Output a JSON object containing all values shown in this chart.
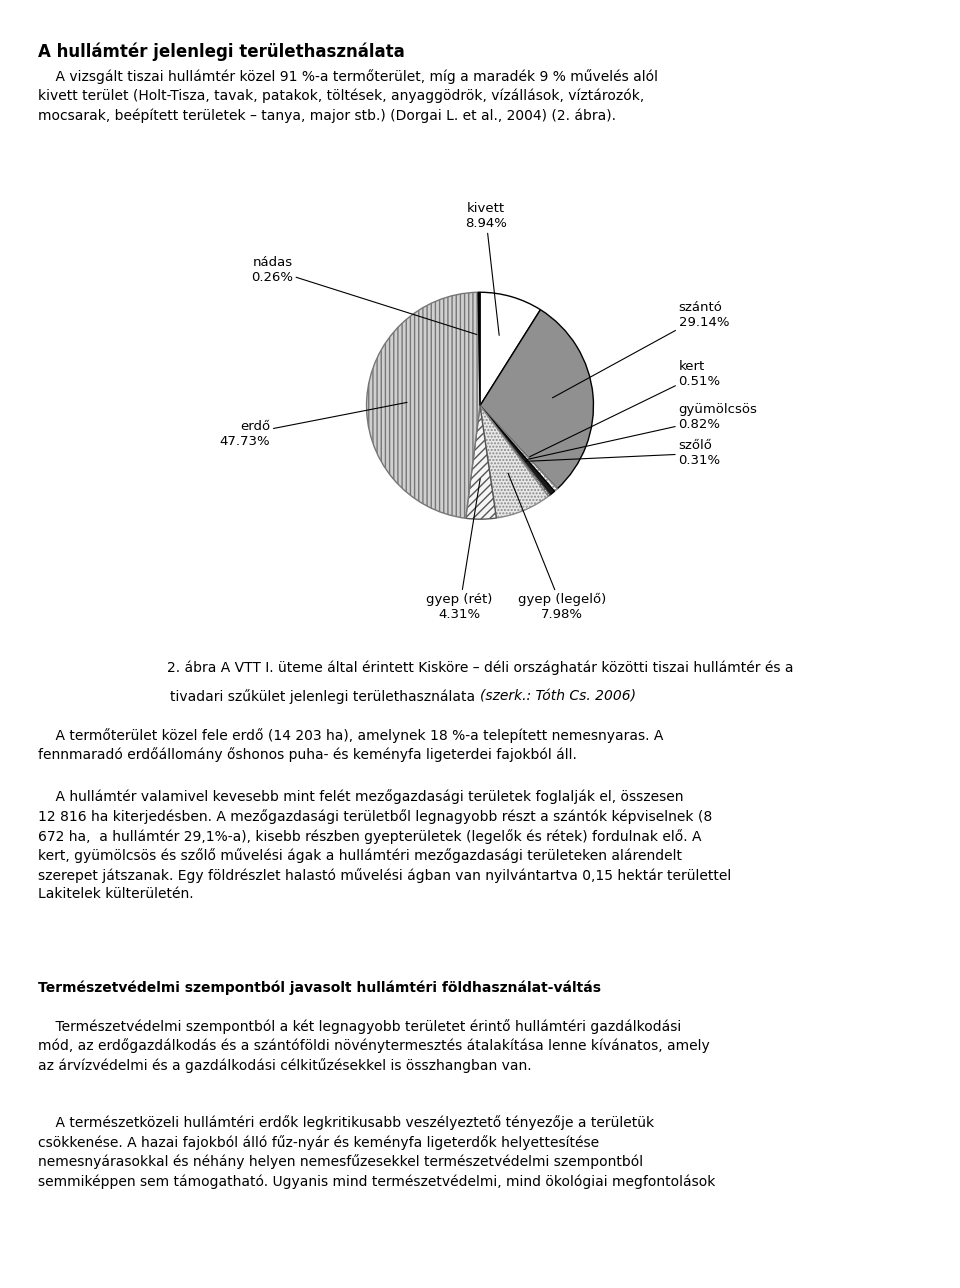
{
  "slice_order": [
    {
      "name": "kivett",
      "pct": "8.94%",
      "value": 8.94,
      "color": "#ffffff",
      "hatch": null,
      "ec": "#000000"
    },
    {
      "name": "szántó",
      "pct": "29.14%",
      "value": 29.14,
      "color": "#909090",
      "hatch": null,
      "ec": "#000000"
    },
    {
      "name": "kert",
      "pct": "0.51%",
      "value": 0.51,
      "color": "#ffffff",
      "hatch": ".....",
      "ec": "#888888"
    },
    {
      "name": "gyümölcsös",
      "pct": "0.82%",
      "value": 0.82,
      "color": "#1a1a1a",
      "hatch": null,
      "ec": "#000000"
    },
    {
      "name": "szőlő",
      "pct": "0.31%",
      "value": 0.31,
      "color": "#ffffff",
      "hatch": "////",
      "ec": "#555555"
    },
    {
      "name": "gyep (legelő)",
      "pct": "7.98%",
      "value": 7.98,
      "color": "#e8e8e8",
      "hatch": ".....",
      "ec": "#888888"
    },
    {
      "name": "gyep (rét)",
      "pct": "4.31%",
      "value": 4.31,
      "color": "#f5f5f5",
      "hatch": "////",
      "ec": "#555555"
    },
    {
      "name": "erdő",
      "pct": "47.73%",
      "value": 47.73,
      "color": "#d0d0d0",
      "hatch": "||||",
      "ec": "#777777"
    },
    {
      "name": "nádas",
      "pct": "0.26%",
      "value": 0.26,
      "color": "#000000",
      "hatch": null,
      "ec": "#000000"
    }
  ],
  "title": "A hullámtér jelenlegi területhasználata",
  "intro": "    A vizsgált tiszai hullámtér közel 91 %-a termőterület, míg a maradék 9 % művelés alól\nkivett terület (Holt-Tisza, tavak, patakok, töltések, anyaggödrök, vízállások, víztározók,\nmocsarak, beépített területek – tanya, major stb.) (Dorgai L. et al., 2004) (2. ábra).",
  "caption_normal": "2. ábra A VTT I. üteme által érintett Kisköre – déli országhatár közötti tiszai hullámtér és a",
  "caption_normal2": "tivadari szűkület jelenlegi területhasználata ",
  "caption_italic": "(szerk.: Tóth Cs. 2006)",
  "body1": "    A termőterület közel fele erdő (14 203 ha), amelynek 18 %-a telepített nemesnyaras. A\nfennmaradó erdőállomány őshonos puha- és keményfa ligeterdei fajokból áll.",
  "body2": "    A hullámtér valamivel kevesebb mint felét mezőgazdasági területek foglalják el, összesen\n12 816 ha kiterjedésben. A mezőgazdasági területből legnagyobb részt a szántók képviselnek (8\n672 ha,  a hullámtér 29,1%-a), kisebb részben gyepterületek (legelők és rétek) fordulnak elő. A\nkert, gyümölcsös és szőlő művelési ágak a hullámtéri mezőgazdasági területeken alárendelt\nszerepet játszanak. Egy földrészlet halastó művelési ágban van nyilvántartva 0,15 hektár területtel\nLakitelek külterületén.",
  "section_title": "Természetvédelmi szempontból javasolt hullámtéri földhasználat-váltás",
  "body3": "    Természetvédelmi szempontból a két legnagyobb területet érintő hullámtéri gazdálkodási\nmód, az erdőgazdálkodás és a szántóföldi növénytermesztés átalakítása lenne kívánatos, amely\naz árvízvédelmi és a gazdálkodási célkitűzésekkel is összhangban van.",
  "body4": "    A természetközeli hullámtéri erdők legkritikusabb veszélyeztető tényezője a területük\ncsökkenése. A hazai fajokból álló fűz-nyár és keményfa ligeterdők helyettesítése\nnemesnyárasokkal és néhány helyen nemesfűzesekkel természetvédelmi szempontból\nsemmiképpen sem támogatható. Ugyanis mind természetvédelmi, mind ökológiai megfontolások"
}
